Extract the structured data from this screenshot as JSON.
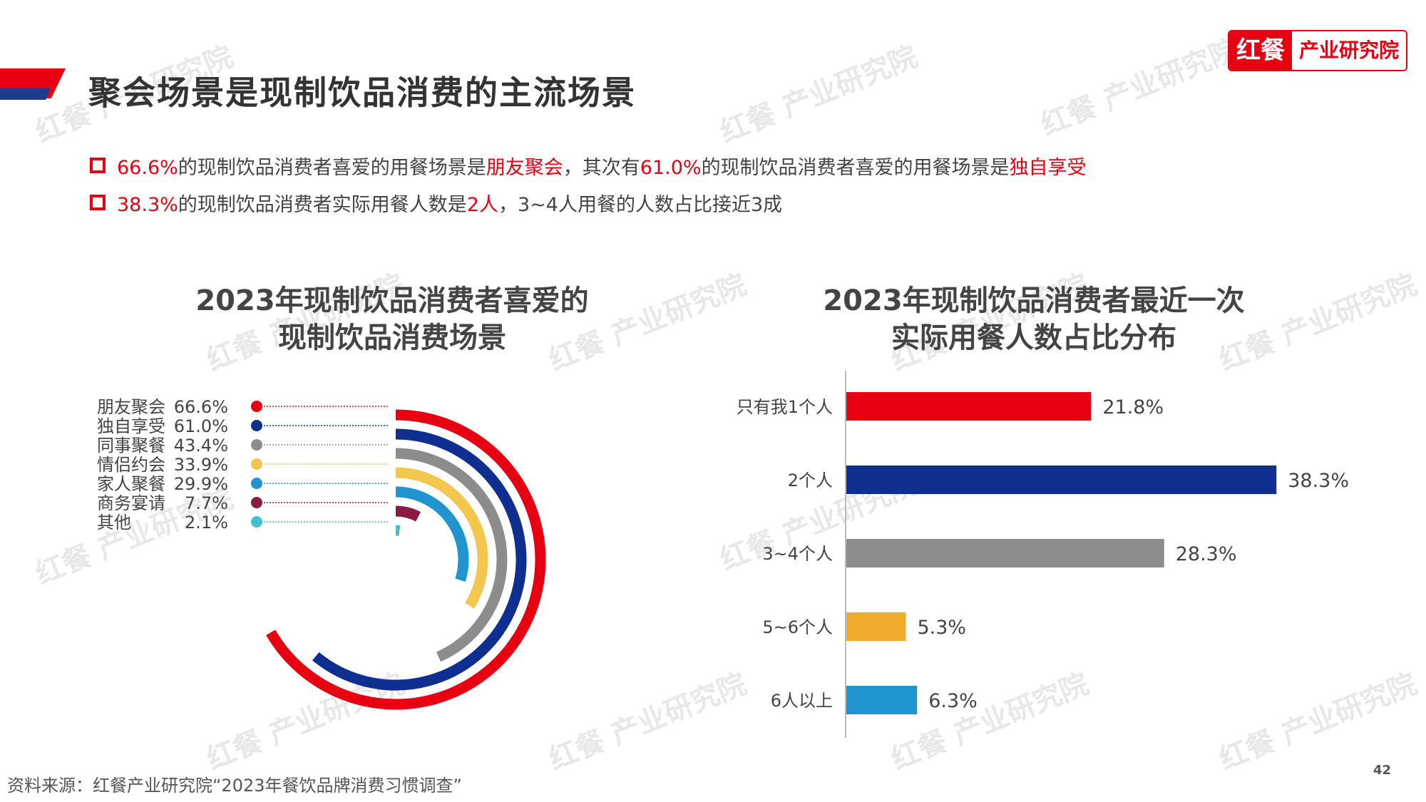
{
  "header": {
    "title": "聚会场景是现制饮品消费的主流场景",
    "logo_brand": "红餐",
    "logo_text": "产业研究院"
  },
  "bullets": [
    {
      "parts": [
        {
          "text": "66.6%",
          "red": true
        },
        {
          "text": "的现制饮品消费者喜爱的用餐场景是",
          "red": false
        },
        {
          "text": "朋友聚会",
          "red": true
        },
        {
          "text": "，其次有",
          "red": false
        },
        {
          "text": "61.0%",
          "red": true
        },
        {
          "text": "的现制饮品消费者喜爱的用餐场景是",
          "red": false
        },
        {
          "text": "独自享受",
          "red": true
        }
      ]
    },
    {
      "parts": [
        {
          "text": "38.3%",
          "red": true
        },
        {
          "text": "的现制饮品消费者实际用餐人数是",
          "red": false
        },
        {
          "text": "2人",
          "red": true
        },
        {
          "text": "，3~4人用餐的人数占比接近3成",
          "red": false
        }
      ]
    }
  ],
  "chart_data": [
    {
      "type": "radial-bar",
      "title_line1": "2023年现制饮品消费者喜爱的",
      "title_line2": "现制饮品消费场景",
      "max": 100,
      "series": [
        {
          "label": "朋友聚会",
          "value": 66.6,
          "display": "66.6%",
          "color": "#e60012"
        },
        {
          "label": "独自享受",
          "value": 61.0,
          "display": "61.0%",
          "color": "#0e2f8f"
        },
        {
          "label": "同事聚餐",
          "value": 43.4,
          "display": "43.4%",
          "color": "#8c8c8c"
        },
        {
          "label": "情侣约会",
          "value": 33.9,
          "display": "33.9%",
          "color": "#f4c64e"
        },
        {
          "label": "家人聚餐",
          "value": 29.9,
          "display": "29.9%",
          "color": "#1f94cf"
        },
        {
          "label": "商务宴请",
          "value": 7.7,
          "display": "7.7%",
          "color": "#8b1a44"
        },
        {
          "label": "其他",
          "value": 2.1,
          "display": "2.1%",
          "color": "#3fc1d0"
        }
      ]
    },
    {
      "type": "bar",
      "orientation": "horizontal",
      "title_line1": "2023年现制饮品消费者最近一次",
      "title_line2": "实际用餐人数占比分布",
      "xlim": [
        0,
        40
      ],
      "categories": [
        "只有我1个人",
        "2个人",
        "3~4个人",
        "5~6个人",
        "6人以上"
      ],
      "values": [
        21.8,
        38.3,
        28.3,
        5.3,
        6.3
      ],
      "labels": [
        "21.8%",
        "38.3%",
        "28.3%",
        "5.3%",
        "6.3%"
      ],
      "colors": [
        "#e60012",
        "#0e2f8f",
        "#8c8c8c",
        "#f0ac2d",
        "#1f94cf"
      ]
    }
  ],
  "footer": {
    "source": "资料来源：红餐产业研究院“2023年餐饮品牌消费习惯调查”",
    "page": "42"
  }
}
